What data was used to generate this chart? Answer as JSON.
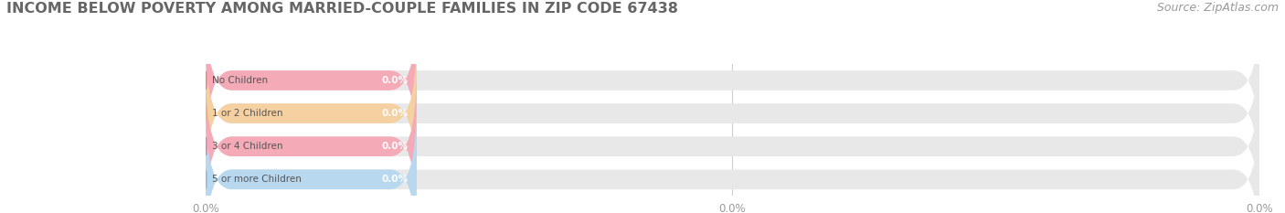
{
  "title": "INCOME BELOW POVERTY AMONG MARRIED-COUPLE FAMILIES IN ZIP CODE 67438",
  "source": "Source: ZipAtlas.com",
  "categories": [
    "No Children",
    "1 or 2 Children",
    "3 or 4 Children",
    "5 or more Children"
  ],
  "values": [
    0.0,
    0.0,
    0.0,
    0.0
  ],
  "bar_colors": [
    "#f07b96",
    "#f0b46a",
    "#f07b96",
    "#90b8d8"
  ],
  "bar_bg_color": "#e8e8e8",
  "bar_bg_shadow": "#d8d8d8",
  "label_bg_colors": [
    "#f5aab8",
    "#f5d0a0",
    "#f5aab8",
    "#b8d8f0"
  ],
  "background_color": "#ffffff",
  "title_fontsize": 11.5,
  "source_fontsize": 9,
  "tick_fontsize": 8.5,
  "bar_height": 0.6,
  "figsize": [
    14.06,
    2.33
  ],
  "dpi": 100,
  "n_bars": 4,
  "xlim_data": [
    0,
    100
  ],
  "xtick_positions": [
    0,
    50,
    100
  ],
  "xtick_labels": [
    "0.0%",
    "0.0%",
    "0.0%"
  ]
}
